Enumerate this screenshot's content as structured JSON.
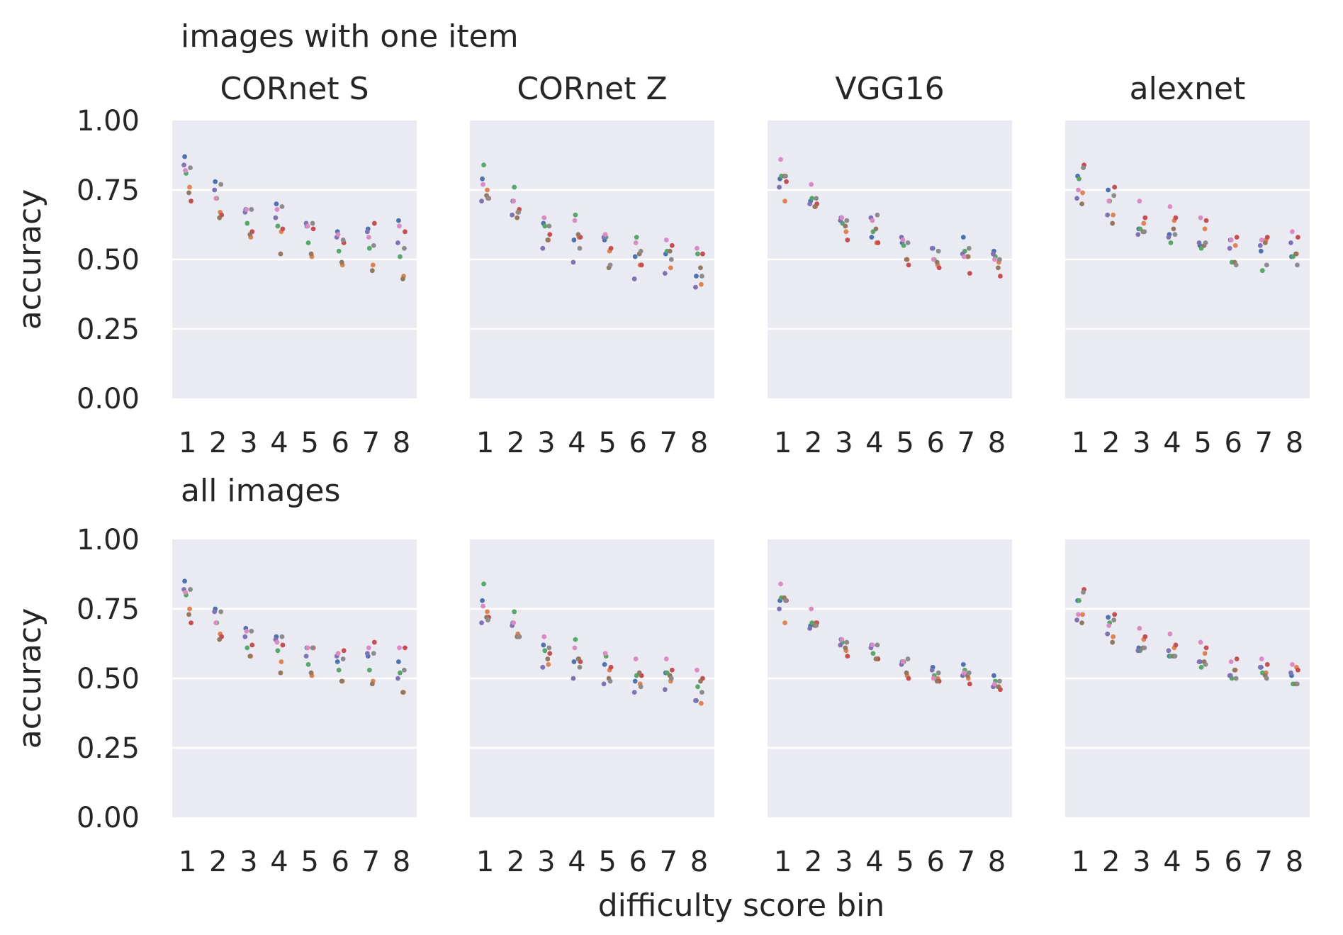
{
  "figure": {
    "row_titles": [
      "images with one item",
      "all images"
    ],
    "xlabel": "difficulty score bin"
  },
  "chart_data": [
    {
      "type": "scatter",
      "row_title": "images with one item",
      "title": "CORnet S",
      "ylabel": "accuracy",
      "ylim": [
        0,
        1
      ],
      "yticks": [
        "0.00",
        "0.25",
        "0.50",
        "0.75",
        "1.00"
      ],
      "categories": [
        "1",
        "2",
        "3",
        "4",
        "5",
        "6",
        "7",
        "8"
      ],
      "grid": true,
      "series": [
        {
          "color": "#4c72b0",
          "values": [
            0.87,
            0.78,
            0.68,
            0.7,
            0.62,
            0.6,
            0.61,
            0.64
          ]
        },
        {
          "color": "#dd8452",
          "values": [
            0.76,
            0.67,
            0.58,
            0.6,
            0.51,
            0.48,
            0.48,
            0.44
          ]
        },
        {
          "color": "#55a868",
          "values": [
            0.81,
            0.72,
            0.63,
            0.62,
            0.56,
            0.53,
            0.54,
            0.51
          ]
        },
        {
          "color": "#c44e52",
          "values": [
            0.71,
            0.66,
            0.6,
            0.61,
            0.61,
            0.56,
            0.63,
            0.6
          ]
        },
        {
          "color": "#8172b3",
          "values": [
            0.84,
            0.75,
            0.67,
            0.65,
            0.63,
            0.58,
            0.6,
            0.56
          ]
        },
        {
          "color": "#937860",
          "values": [
            0.74,
            0.65,
            0.59,
            0.52,
            0.52,
            0.49,
            0.46,
            0.43
          ]
        },
        {
          "color": "#da8bc3",
          "values": [
            0.82,
            0.72,
            0.68,
            0.68,
            0.62,
            0.59,
            0.58,
            0.62
          ]
        },
        {
          "color": "#8c8c8c",
          "values": [
            0.83,
            0.77,
            0.68,
            0.69,
            0.63,
            0.57,
            0.55,
            0.54
          ]
        }
      ]
    },
    {
      "type": "scatter",
      "row_title": "images with one item",
      "title": "CORnet Z",
      "ylim": [
        0,
        1
      ],
      "categories": [
        "1",
        "2",
        "3",
        "4",
        "5",
        "6",
        "7",
        "8"
      ],
      "grid": true,
      "series": [
        {
          "color": "#4c72b0",
          "values": [
            0.79,
            0.71,
            0.63,
            0.57,
            0.57,
            0.51,
            0.52,
            0.44
          ]
        },
        {
          "color": "#dd8452",
          "values": [
            0.75,
            0.67,
            0.57,
            0.58,
            0.53,
            0.48,
            0.47,
            0.41
          ]
        },
        {
          "color": "#55a868",
          "values": [
            0.84,
            0.76,
            0.62,
            0.66,
            0.58,
            0.58,
            0.53,
            0.52
          ]
        },
        {
          "color": "#c44e52",
          "values": [
            0.72,
            0.68,
            0.59,
            0.58,
            0.54,
            0.48,
            0.55,
            0.52
          ]
        },
        {
          "color": "#8172b3",
          "values": [
            0.71,
            0.66,
            0.54,
            0.49,
            0.58,
            0.43,
            0.45,
            0.4
          ]
        },
        {
          "color": "#937860",
          "values": [
            0.73,
            0.65,
            0.57,
            0.59,
            0.47,
            0.52,
            0.53,
            0.47
          ]
        },
        {
          "color": "#da8bc3",
          "values": [
            0.77,
            0.71,
            0.65,
            0.64,
            0.59,
            0.56,
            0.57,
            0.54
          ]
        },
        {
          "color": "#8c8c8c",
          "values": [
            0.72,
            0.67,
            0.62,
            0.54,
            0.48,
            0.53,
            0.5,
            0.44
          ]
        }
      ]
    },
    {
      "type": "scatter",
      "row_title": "images with one item",
      "title": "VGG16",
      "ylim": [
        0,
        1
      ],
      "categories": [
        "1",
        "2",
        "3",
        "4",
        "5",
        "6",
        "7",
        "8"
      ],
      "grid": true,
      "series": [
        {
          "color": "#4c72b0",
          "values": [
            0.79,
            0.71,
            0.65,
            0.58,
            0.56,
            0.54,
            0.58,
            0.53
          ]
        },
        {
          "color": "#dd8452",
          "values": [
            0.71,
            0.69,
            0.6,
            0.56,
            0.5,
            0.48,
            0.51,
            0.49
          ]
        },
        {
          "color": "#55a868",
          "values": [
            0.8,
            0.72,
            0.63,
            0.6,
            0.55,
            0.5,
            0.53,
            0.51
          ]
        },
        {
          "color": "#c44e52",
          "values": [
            0.78,
            0.7,
            0.57,
            0.56,
            0.48,
            0.47,
            0.45,
            0.44
          ]
        },
        {
          "color": "#8172b3",
          "values": [
            0.76,
            0.7,
            0.64,
            0.65,
            0.58,
            0.54,
            0.52,
            0.52
          ]
        },
        {
          "color": "#937860",
          "values": [
            0.8,
            0.69,
            0.62,
            0.61,
            0.5,
            0.49,
            0.51,
            0.47
          ]
        },
        {
          "color": "#da8bc3",
          "values": [
            0.86,
            0.77,
            0.65,
            0.64,
            0.57,
            0.5,
            0.51,
            0.5
          ]
        },
        {
          "color": "#8c8c8c",
          "values": [
            0.8,
            0.72,
            0.64,
            0.66,
            0.56,
            0.53,
            0.54,
            0.5
          ]
        }
      ]
    },
    {
      "type": "scatter",
      "row_title": "images with one item",
      "title": "alexnet",
      "ylim": [
        0,
        1
      ],
      "categories": [
        "1",
        "2",
        "3",
        "4",
        "5",
        "6",
        "7",
        "8"
      ],
      "grid": true,
      "series": [
        {
          "color": "#4c72b0",
          "values": [
            0.8,
            0.75,
            0.61,
            0.59,
            0.55,
            0.57,
            0.53,
            0.51
          ]
        },
        {
          "color": "#dd8452",
          "values": [
            0.74,
            0.66,
            0.63,
            0.64,
            0.61,
            0.55,
            0.57,
            0.52
          ]
        },
        {
          "color": "#55a868",
          "values": [
            0.79,
            0.71,
            0.61,
            0.56,
            0.54,
            0.49,
            0.46,
            0.51
          ]
        },
        {
          "color": "#c44e52",
          "values": [
            0.84,
            0.76,
            0.65,
            0.65,
            0.64,
            0.58,
            0.58,
            0.58
          ]
        },
        {
          "color": "#8172b3",
          "values": [
            0.72,
            0.66,
            0.59,
            0.58,
            0.56,
            0.54,
            0.55,
            0.56
          ]
        },
        {
          "color": "#937860",
          "values": [
            0.7,
            0.63,
            0.6,
            0.61,
            0.55,
            0.49,
            0.56,
            0.52
          ]
        },
        {
          "color": "#da8bc3",
          "values": [
            0.75,
            0.71,
            0.71,
            0.69,
            0.65,
            0.57,
            0.57,
            0.6
          ]
        },
        {
          "color": "#8c8c8c",
          "values": [
            0.83,
            0.73,
            0.6,
            0.59,
            0.56,
            0.48,
            0.48,
            0.48
          ]
        }
      ]
    },
    {
      "type": "scatter",
      "row_title": "all images",
      "title": "",
      "ylabel": "accuracy",
      "ylim": [
        0,
        1
      ],
      "yticks": [
        "0.00",
        "0.25",
        "0.50",
        "0.75",
        "1.00"
      ],
      "categories": [
        "1",
        "2",
        "3",
        "4",
        "5",
        "6",
        "7",
        "8"
      ],
      "grid": true,
      "series": [
        {
          "color": "#4c72b0",
          "values": [
            0.85,
            0.75,
            0.68,
            0.65,
            0.61,
            0.56,
            0.58,
            0.56
          ]
        },
        {
          "color": "#dd8452",
          "values": [
            0.75,
            0.66,
            0.58,
            0.56,
            0.51,
            0.49,
            0.49,
            0.45
          ]
        },
        {
          "color": "#55a868",
          "values": [
            0.8,
            0.7,
            0.61,
            0.6,
            0.55,
            0.53,
            0.53,
            0.52
          ]
        },
        {
          "color": "#c44e52",
          "values": [
            0.7,
            0.65,
            0.62,
            0.62,
            0.61,
            0.6,
            0.63,
            0.61
          ]
        },
        {
          "color": "#8172b3",
          "values": [
            0.82,
            0.74,
            0.65,
            0.64,
            0.58,
            0.58,
            0.59,
            0.5
          ]
        },
        {
          "color": "#937860",
          "values": [
            0.73,
            0.64,
            0.58,
            0.52,
            0.52,
            0.49,
            0.48,
            0.45
          ]
        },
        {
          "color": "#da8bc3",
          "values": [
            0.81,
            0.7,
            0.67,
            0.63,
            0.61,
            0.59,
            0.61,
            0.61
          ]
        },
        {
          "color": "#8c8c8c",
          "values": [
            0.82,
            0.74,
            0.67,
            0.65,
            0.61,
            0.57,
            0.59,
            0.53
          ]
        }
      ]
    },
    {
      "type": "scatter",
      "row_title": "all images",
      "title": "",
      "ylim": [
        0,
        1
      ],
      "categories": [
        "1",
        "2",
        "3",
        "4",
        "5",
        "6",
        "7",
        "8"
      ],
      "grid": true,
      "series": [
        {
          "color": "#4c72b0",
          "values": [
            0.78,
            0.7,
            0.62,
            0.56,
            0.55,
            0.49,
            0.52,
            0.42
          ]
        },
        {
          "color": "#dd8452",
          "values": [
            0.74,
            0.66,
            0.55,
            0.57,
            0.53,
            0.48,
            0.49,
            0.41
          ]
        },
        {
          "color": "#55a868",
          "values": [
            0.84,
            0.74,
            0.6,
            0.64,
            0.58,
            0.51,
            0.52,
            0.47
          ]
        },
        {
          "color": "#c44e52",
          "values": [
            0.72,
            0.65,
            0.59,
            0.56,
            0.54,
            0.51,
            0.53,
            0.5
          ]
        },
        {
          "color": "#8172b3",
          "values": [
            0.7,
            0.69,
            0.54,
            0.5,
            0.48,
            0.45,
            0.46,
            0.42
          ]
        },
        {
          "color": "#937860",
          "values": [
            0.72,
            0.65,
            0.57,
            0.57,
            0.5,
            0.52,
            0.51,
            0.49
          ]
        },
        {
          "color": "#da8bc3",
          "values": [
            0.76,
            0.7,
            0.65,
            0.61,
            0.59,
            0.57,
            0.57,
            0.53
          ]
        },
        {
          "color": "#8c8c8c",
          "values": [
            0.71,
            0.65,
            0.61,
            0.54,
            0.49,
            0.47,
            0.5,
            0.45
          ]
        }
      ]
    },
    {
      "type": "scatter",
      "row_title": "all images",
      "title": "",
      "ylim": [
        0,
        1
      ],
      "categories": [
        "1",
        "2",
        "3",
        "4",
        "5",
        "6",
        "7",
        "8"
      ],
      "grid": true,
      "series": [
        {
          "color": "#4c72b0",
          "values": [
            0.78,
            0.69,
            0.64,
            0.62,
            0.56,
            0.54,
            0.55,
            0.51
          ]
        },
        {
          "color": "#dd8452",
          "values": [
            0.7,
            0.7,
            0.6,
            0.57,
            0.51,
            0.5,
            0.5,
            0.47
          ]
        },
        {
          "color": "#55a868",
          "values": [
            0.79,
            0.7,
            0.63,
            0.59,
            0.56,
            0.51,
            0.53,
            0.49
          ]
        },
        {
          "color": "#c44e52",
          "values": [
            0.78,
            0.7,
            0.58,
            0.57,
            0.5,
            0.49,
            0.48,
            0.46
          ]
        },
        {
          "color": "#8172b3",
          "values": [
            0.75,
            0.68,
            0.62,
            0.61,
            0.55,
            0.53,
            0.51,
            0.47
          ]
        },
        {
          "color": "#937860",
          "values": [
            0.79,
            0.69,
            0.61,
            0.57,
            0.52,
            0.49,
            0.51,
            0.47
          ]
        },
        {
          "color": "#da8bc3",
          "values": [
            0.84,
            0.75,
            0.64,
            0.62,
            0.56,
            0.5,
            0.52,
            0.48
          ]
        },
        {
          "color": "#8c8c8c",
          "values": [
            0.78,
            0.69,
            0.63,
            0.62,
            0.57,
            0.52,
            0.52,
            0.49
          ]
        }
      ]
    },
    {
      "type": "scatter",
      "row_title": "all images",
      "title": "",
      "ylim": [
        0,
        1
      ],
      "categories": [
        "1",
        "2",
        "3",
        "4",
        "5",
        "6",
        "7",
        "8"
      ],
      "grid": true,
      "series": [
        {
          "color": "#4c72b0",
          "values": [
            0.78,
            0.72,
            0.61,
            0.58,
            0.56,
            0.51,
            0.54,
            0.51
          ]
        },
        {
          "color": "#dd8452",
          "values": [
            0.73,
            0.65,
            0.64,
            0.61,
            0.59,
            0.53,
            0.52,
            0.54
          ]
        },
        {
          "color": "#55a868",
          "values": [
            0.78,
            0.7,
            0.6,
            0.58,
            0.54,
            0.5,
            0.52,
            0.48
          ]
        },
        {
          "color": "#c44e52",
          "values": [
            0.82,
            0.73,
            0.65,
            0.62,
            0.61,
            0.57,
            0.55,
            0.53
          ]
        },
        {
          "color": "#8172b3",
          "values": [
            0.71,
            0.66,
            0.6,
            0.6,
            0.56,
            0.51,
            0.54,
            0.52
          ]
        },
        {
          "color": "#937860",
          "values": [
            0.7,
            0.63,
            0.61,
            0.58,
            0.56,
            0.53,
            0.51,
            0.48
          ]
        },
        {
          "color": "#da8bc3",
          "values": [
            0.73,
            0.69,
            0.68,
            0.66,
            0.63,
            0.56,
            0.57,
            0.55
          ]
        },
        {
          "color": "#8c8c8c",
          "values": [
            0.81,
            0.71,
            0.61,
            0.58,
            0.55,
            0.5,
            0.5,
            0.48
          ]
        }
      ]
    }
  ]
}
